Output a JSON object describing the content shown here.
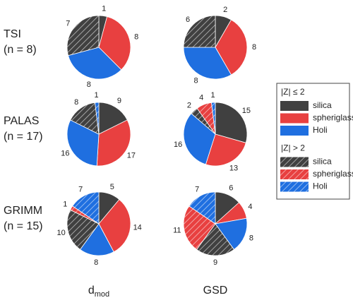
{
  "row_labels": [
    {
      "name": "TSI",
      "n": "(n = 8)"
    },
    {
      "name": "PALAS",
      "n": "(n = 17)"
    },
    {
      "name": "GRIMM",
      "n": "(n = 15)"
    }
  ],
  "column_labels": [
    {
      "text": "d",
      "subscript": "mod"
    },
    {
      "text": "GSD"
    }
  ],
  "legend": {
    "groups": [
      {
        "title": "|Z| ≤ 2",
        "items": [
          {
            "name": "silica",
            "color": "#404040",
            "hatch": false
          },
          {
            "name": "spheriglass",
            "color": "#e84040",
            "hatch": false
          },
          {
            "name": "Holi",
            "color": "#1f6fe0",
            "hatch": false
          }
        ]
      },
      {
        "title": "|Z| > 2",
        "items": [
          {
            "name": "silica",
            "color": "#404040",
            "hatch": true
          },
          {
            "name": "spheriglass",
            "color": "#e84040",
            "hatch": true
          },
          {
            "name": "Holi",
            "color": "#1f6fe0",
            "hatch": true
          }
        ]
      }
    ]
  },
  "chart_data": [
    {
      "type": "pie",
      "values": [
        1,
        8,
        8,
        7,
        0,
        0
      ]
    },
    {
      "type": "pie",
      "values": [
        2,
        8,
        8,
        6,
        0,
        0
      ]
    },
    {
      "type": "pie",
      "values": [
        9,
        17,
        16,
        8,
        0,
        1
      ]
    },
    {
      "type": "pie",
      "values": [
        15,
        13,
        16,
        2,
        4,
        1
      ]
    },
    {
      "type": "pie",
      "values": [
        5,
        14,
        8,
        10,
        1,
        7
      ]
    },
    {
      "type": "pie",
      "values": [
        6,
        4,
        8,
        9,
        11,
        7
      ]
    }
  ]
}
